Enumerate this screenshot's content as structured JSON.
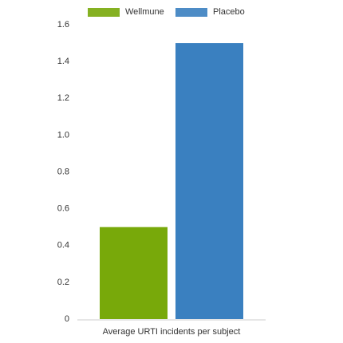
{
  "chart_data": {
    "type": "bar",
    "categories": [
      "Average URTI incidents per subject"
    ],
    "series": [
      {
        "name": "Wellmune",
        "color": "#78a90a",
        "values": [
          0.5
        ]
      },
      {
        "name": "Placebo",
        "color": "#3a80c0",
        "values": [
          1.5
        ]
      }
    ],
    "ylim": [
      0,
      1.6
    ],
    "yticks": [
      0,
      0.2,
      0.4,
      0.6,
      0.8,
      {
        "value": 1,
        "label": "1.0"
      },
      1.2,
      1.4,
      1.6
    ],
    "grid": false,
    "legend": "top"
  }
}
